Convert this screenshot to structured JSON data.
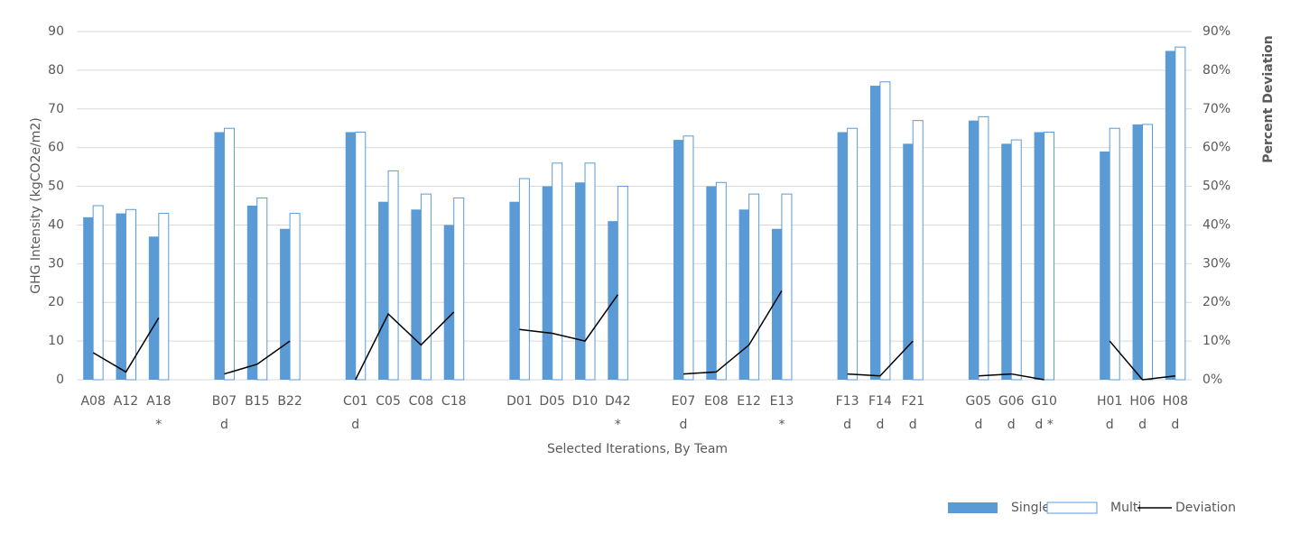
{
  "chart_data": {
    "type": "bar",
    "y_label": "GHG Intensity (kgCO2e/m2)",
    "y2_label": "Percent Deviation",
    "x_label": "Selected Iterations, By Team",
    "categories": [
      "A08",
      "A12",
      "A18\n*",
      null,
      "B07\nd",
      "B15",
      "B22",
      null,
      "C01\nd",
      "C05",
      "C08",
      "C18",
      null,
      "D01",
      "D05",
      "D10",
      "D42\n*",
      null,
      "E07\nd",
      "E08",
      "E12",
      "E13\n*",
      null,
      "F13\nd",
      "F14\nd",
      "F21\nd",
      null,
      "G05\nd",
      "G06\nd",
      "G10\nd *",
      null,
      "H01\nd",
      "H06\nd",
      "H08\nd"
    ],
    "series": [
      {
        "name": "Single",
        "type": "bar",
        "color": "#5b9bd5",
        "values": [
          42,
          43,
          37,
          null,
          64,
          45,
          39,
          null,
          64,
          46,
          44,
          40,
          null,
          46,
          50,
          51,
          41,
          null,
          62,
          50,
          44,
          39,
          null,
          64,
          76,
          61,
          null,
          67,
          61,
          64,
          null,
          59,
          66,
          85
        ]
      },
      {
        "name": "Multi",
        "type": "bar",
        "color": "#ffffff",
        "stroke": "#5b9bd5",
        "values": [
          45,
          44,
          43,
          null,
          65,
          47,
          43,
          null,
          64,
          54,
          48,
          47,
          null,
          52,
          56,
          56,
          50,
          null,
          63,
          51,
          48,
          48,
          null,
          65,
          77,
          67,
          null,
          68,
          62,
          64,
          null,
          65,
          66,
          86
        ]
      },
      {
        "name": "Deviation",
        "type": "line",
        "axis": "y2",
        "color": "#000000",
        "values": [
          7,
          2,
          16,
          null,
          1.5,
          4,
          10,
          null,
          0,
          17,
          9,
          17.5,
          null,
          13,
          12,
          10,
          22,
          null,
          1.5,
          2,
          9,
          23,
          null,
          1.5,
          1,
          10,
          null,
          1,
          1.5,
          0,
          null,
          10,
          0,
          1
        ]
      }
    ],
    "ylim": [
      0,
      90
    ],
    "yticks": [
      0,
      10,
      20,
      30,
      40,
      50,
      60,
      70,
      80,
      90
    ],
    "y2lim": [
      0,
      90
    ],
    "y2ticks": [
      {
        "value": 0,
        "label": "0%"
      },
      {
        "value": 10,
        "label": "10%"
      },
      {
        "value": 20,
        "label": "20%"
      },
      {
        "value": 30,
        "label": "30%"
      },
      {
        "value": 40,
        "label": "40%"
      },
      {
        "value": 50,
        "label": "50%"
      },
      {
        "value": 60,
        "label": "60%"
      },
      {
        "value": 70,
        "label": "70%"
      },
      {
        "value": 80,
        "label": "80%"
      },
      {
        "value": 90,
        "label": "90%"
      }
    ],
    "grid": true,
    "legend": "bottom-right"
  }
}
